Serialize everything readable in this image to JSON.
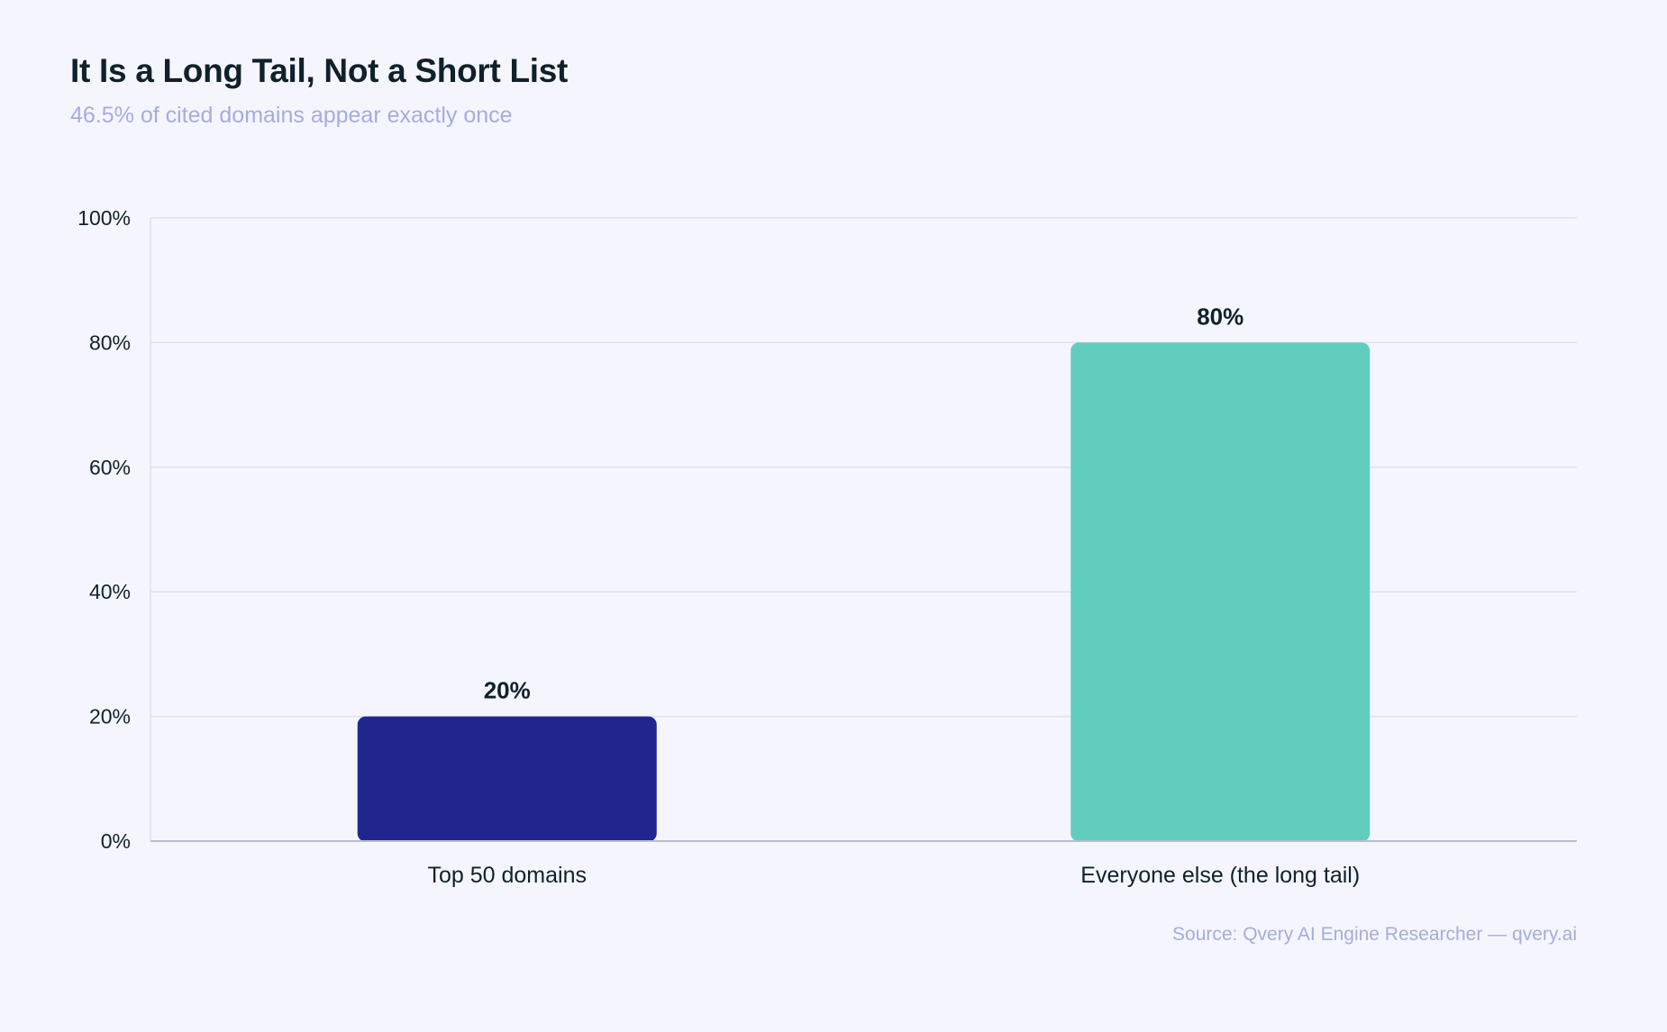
{
  "header": {
    "title": "It Is a Long Tail, Not a Short List",
    "subtitle": "46.5% of cited domains appear exactly once"
  },
  "footer": {
    "source": "Source: Qvery AI Engine Researcher — qvery.ai"
  },
  "colors": {
    "background": "#f5f6fd",
    "bar_top50": "#21268f",
    "bar_long_tail": "#61cebd",
    "gridline": "#dde0ee",
    "axis": "#b9bdd2",
    "tick_text": "#10212b",
    "muted_text": "#a5acdf"
  },
  "chart_data": {
    "type": "bar",
    "categories": [
      "Top 50 domains",
      "Everyone else (the long tail)"
    ],
    "values": [
      20,
      80
    ],
    "value_labels": [
      "20%",
      "80%"
    ],
    "bar_colors": [
      "#21268f",
      "#61cebd"
    ],
    "ylim": [
      0,
      100
    ],
    "yticks": [
      0,
      20,
      40,
      60,
      80,
      100
    ],
    "ytick_labels": [
      "0%",
      "20%",
      "40%",
      "60%",
      "80%",
      "100%"
    ],
    "grid": true,
    "legend": "none"
  }
}
